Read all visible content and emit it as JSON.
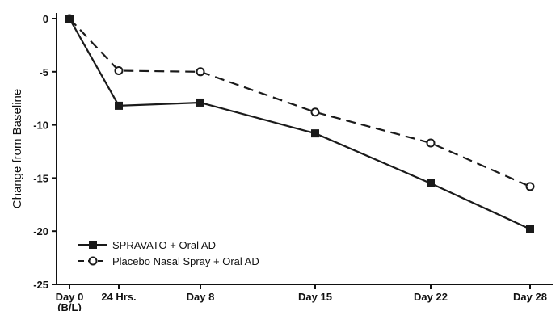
{
  "chart_data": {
    "type": "line",
    "title": "",
    "xlabel": "",
    "ylabel": "Change from Baseline",
    "x_tick_labels": [
      "Day 0",
      "24 Hrs.",
      "Day 8",
      "Day 15",
      "Day 22",
      "Day 28"
    ],
    "x_tick_sublabel": "(B/L)",
    "x_days": [
      0,
      1,
      8,
      15,
      22,
      28
    ],
    "ylim": [
      -25,
      0
    ],
    "y_ticks": [
      0,
      -5,
      -10,
      -15,
      -20,
      -25
    ],
    "y_tick_labels": [
      "0",
      "-5",
      "-10",
      "-15",
      "-20",
      "-25"
    ],
    "grid": false,
    "legend_position": "bottom-left",
    "series": [
      {
        "name": "SPRAVATO + Oral AD",
        "values": [
          0,
          -8.2,
          -7.9,
          -10.8,
          -15.5,
          -19.8
        ],
        "marker": "filled-square",
        "line_style": "solid",
        "color": "#1a1a1a"
      },
      {
        "name": "Placebo Nasal Spray + Oral AD",
        "values": [
          0,
          -4.9,
          -5.0,
          -8.8,
          -11.7,
          -15.8
        ],
        "marker": "open-circle",
        "line_style": "dashed",
        "color": "#1a1a1a"
      }
    ]
  }
}
